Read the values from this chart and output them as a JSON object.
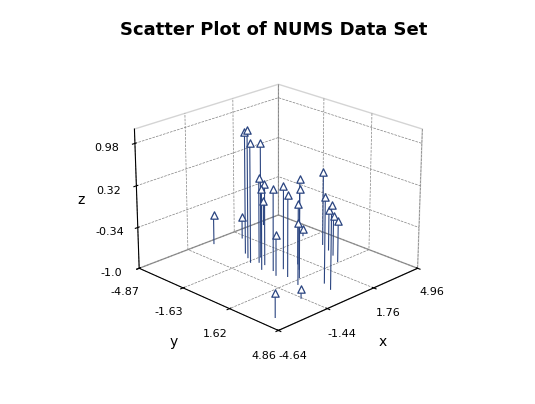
{
  "title": "Scatter Plot of NUMS Data Set",
  "xlabel": "x",
  "ylabel": "y",
  "zlabel": "z",
  "xlim": [
    -4.64,
    4.96
  ],
  "ylim": [
    -4.87,
    4.86
  ],
  "zlim": [
    -1.0,
    1.2
  ],
  "zticks": [
    -1.0,
    -0.34,
    0.32,
    0.98
  ],
  "xticks": [
    -4.64,
    -1.44,
    1.76,
    4.96
  ],
  "yticks": [
    -4.87,
    -1.63,
    1.62,
    4.86
  ],
  "marker_color": "#2a4480",
  "line_color": "#2a4480",
  "title_fontsize": 13,
  "tick_fontsize": 8,
  "label_fontsize": 10,
  "elev": 22,
  "azim": -135,
  "points": [
    [
      -3.8,
      3.8,
      -0.62
    ],
    [
      -1.5,
      3.2,
      -0.85
    ],
    [
      0.2,
      3.5,
      0.32
    ],
    [
      0.5,
      2.8,
      0.35
    ],
    [
      -0.5,
      2.0,
      0.27
    ],
    [
      0.1,
      1.5,
      0.55
    ],
    [
      -0.2,
      1.0,
      0.29
    ],
    [
      0.8,
      0.8,
      0.29
    ],
    [
      1.2,
      0.3,
      -0.34
    ],
    [
      0.3,
      0.2,
      0.32
    ],
    [
      -0.2,
      0.0,
      0.3
    ],
    [
      -0.5,
      -0.5,
      0.28
    ],
    [
      0.0,
      -0.8,
      0.3
    ],
    [
      0.0,
      -1.2,
      0.35
    ],
    [
      -0.3,
      -1.5,
      0.9
    ],
    [
      0.5,
      -1.6,
      0.84
    ],
    [
      0.0,
      -2.0,
      1.05
    ],
    [
      0.3,
      -2.5,
      0.95
    ],
    [
      2.8,
      1.5,
      -0.34
    ],
    [
      3.2,
      0.8,
      -0.36
    ],
    [
      3.5,
      0.2,
      -0.34
    ],
    [
      3.8,
      -0.5,
      0.2
    ],
    [
      3.9,
      -2.0,
      -0.88
    ],
    [
      1.5,
      -4.0,
      -0.65
    ],
    [
      3.5,
      -4.5,
      -0.6
    ],
    [
      0.0,
      -4.5,
      -0.52
    ],
    [
      -0.5,
      0.5,
      -0.35
    ]
  ]
}
